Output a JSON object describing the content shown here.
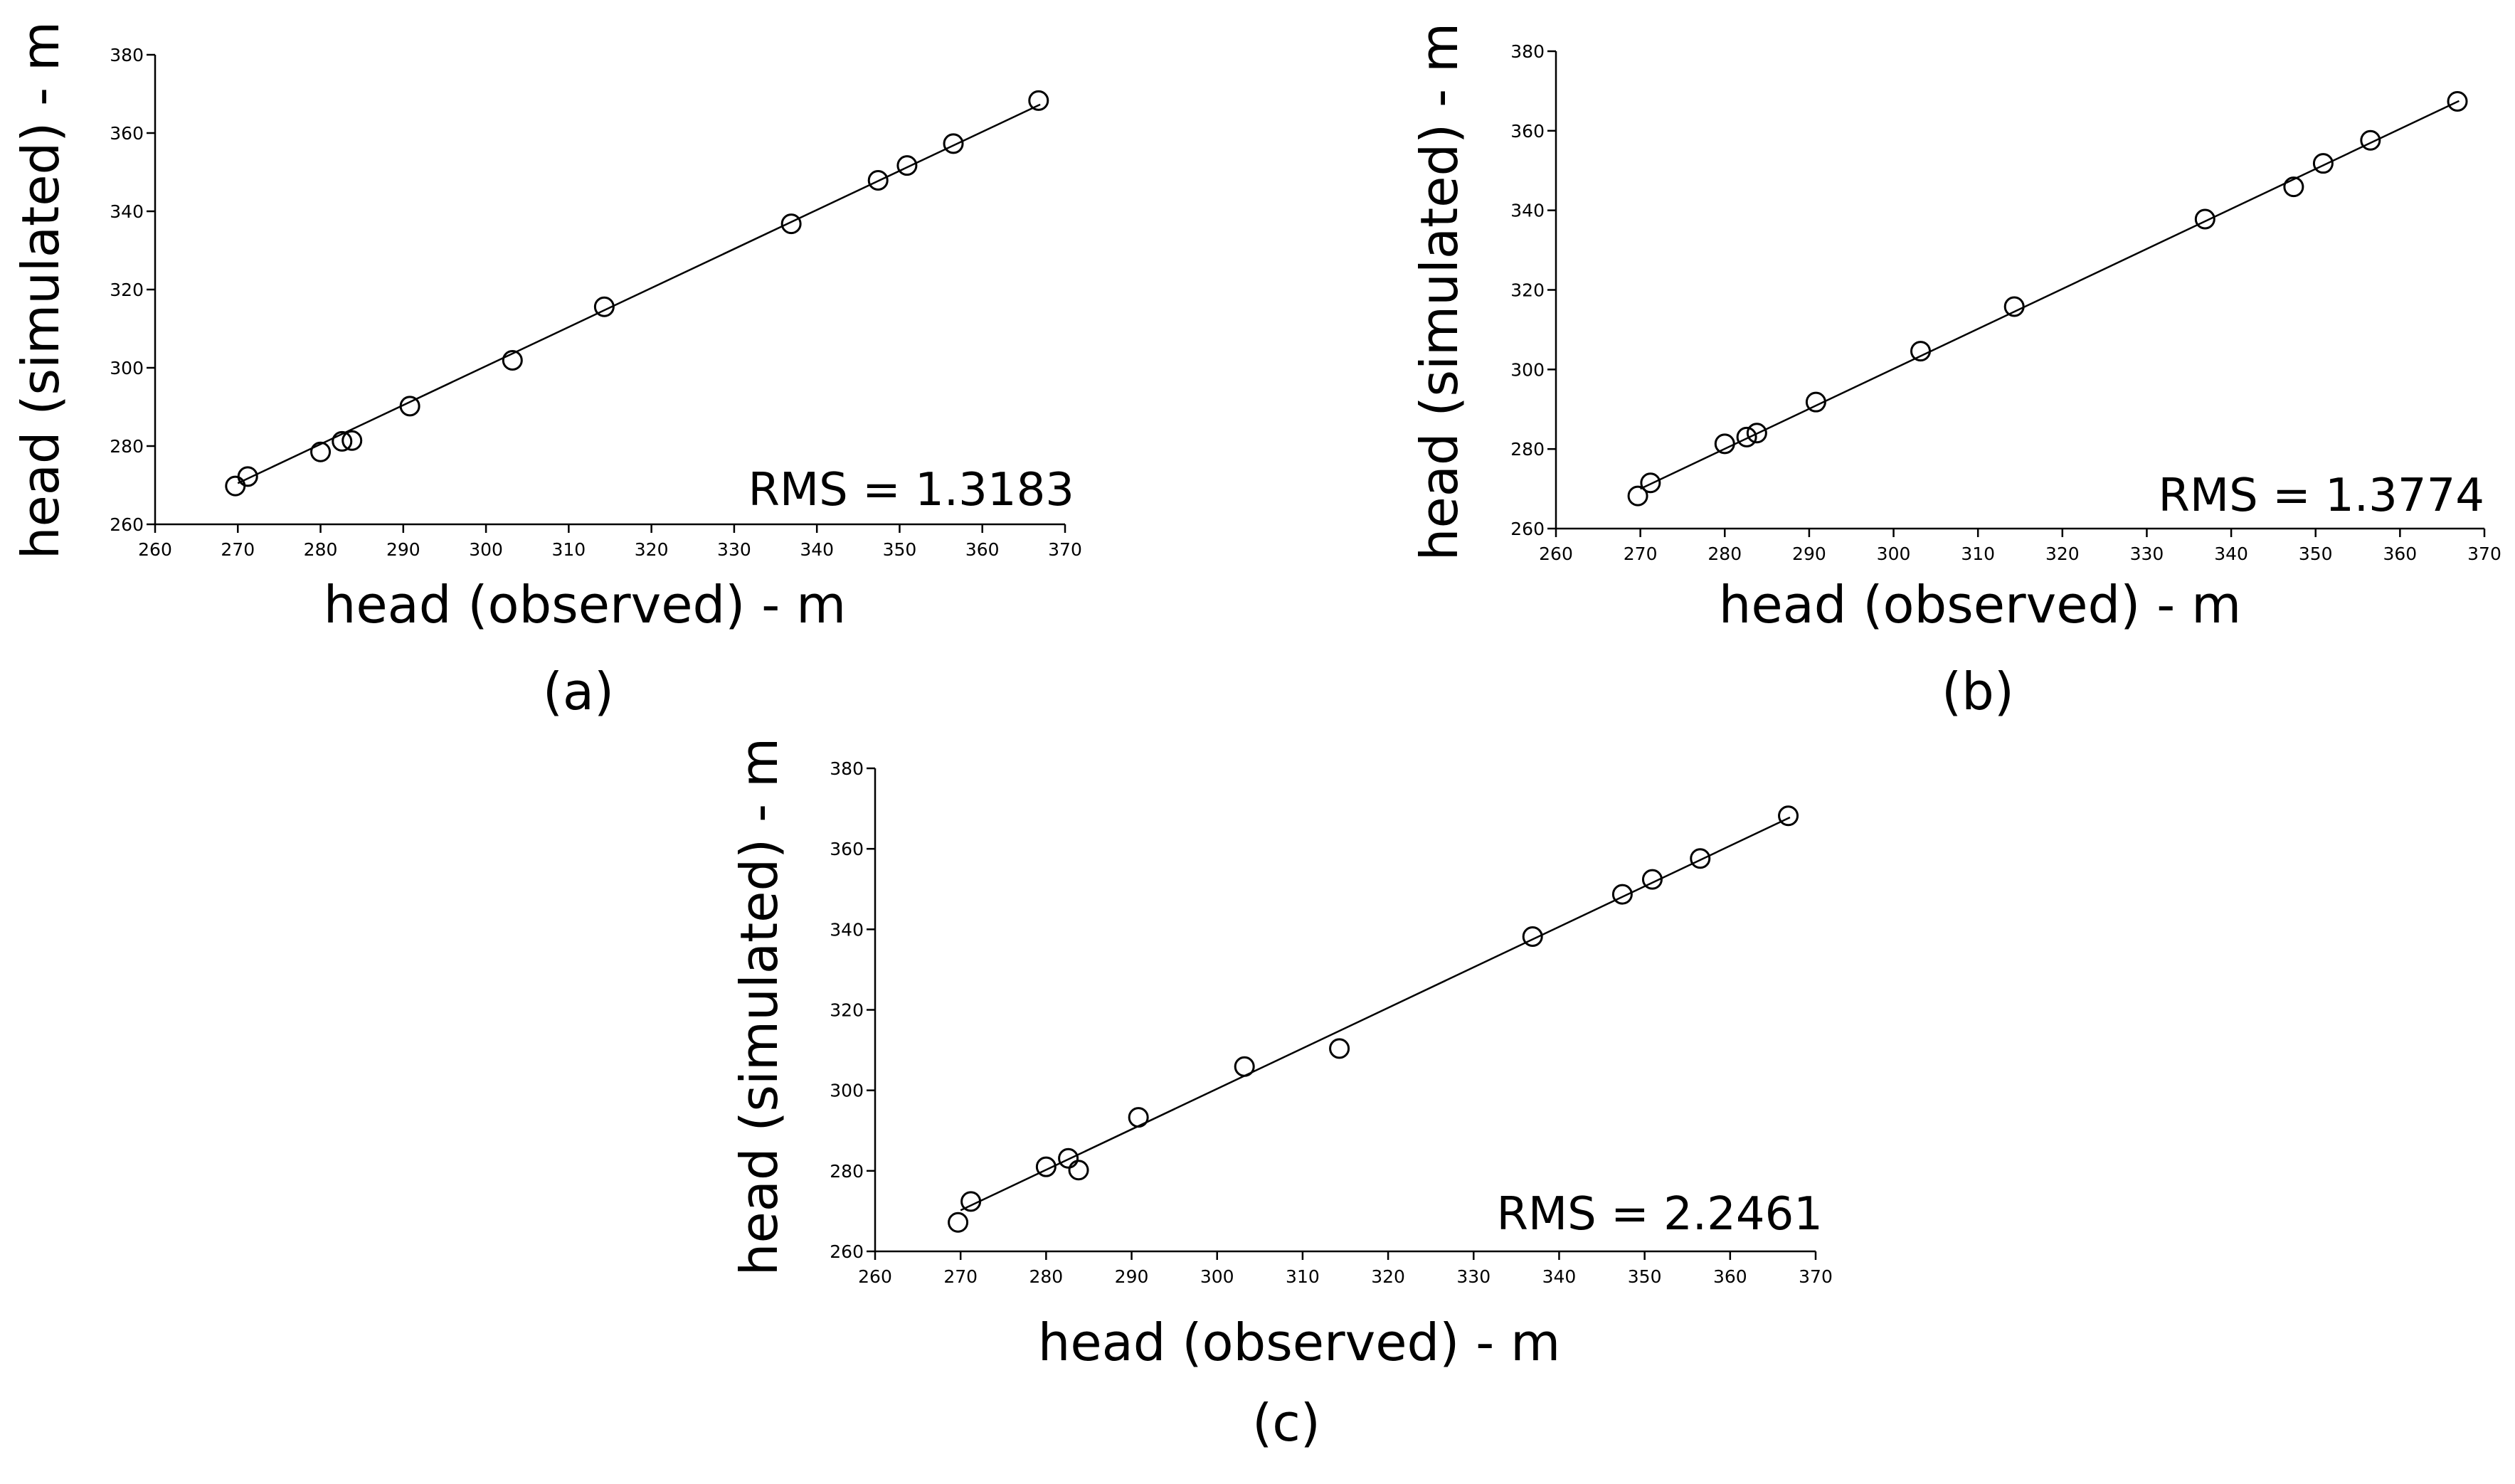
{
  "chart_data": [
    {
      "type": "scatter",
      "panel_label": "(a)",
      "xlabel": "head (observed) - m",
      "ylabel": "head (simulated) - m",
      "annotation": "RMS = 1.3183",
      "xlim": [
        260,
        370
      ],
      "ylim": [
        260,
        380
      ],
      "x_ticks": [
        "260",
        "270",
        "280",
        "290",
        "300",
        "310",
        "320",
        "330",
        "340",
        "350",
        "360",
        "370"
      ],
      "y_ticks": [
        "260",
        "280",
        "300",
        "320",
        "340",
        "360",
        "380"
      ],
      "points": {
        "x": [
          269.7,
          271.2,
          280.0,
          282.6,
          283.8,
          290.8,
          303.2,
          314.3,
          336.9,
          347.4,
          350.9,
          356.5,
          366.8
        ],
        "y": [
          269.8,
          272.2,
          278.5,
          281.2,
          281.4,
          290.2,
          301.9,
          315.6,
          336.8,
          347.9,
          351.7,
          357.3,
          368.3
        ]
      },
      "fit_line": {
        "x": [
          270,
          367
        ],
        "y": [
          270.5,
          367.3
        ]
      }
    },
    {
      "type": "scatter",
      "panel_label": "(b)",
      "xlabel": "head (observed) - m",
      "ylabel": "head (simulated) - m",
      "annotation": "RMS = 1.3774",
      "xlim": [
        260,
        370
      ],
      "ylim": [
        260,
        380
      ],
      "x_ticks": [
        "260",
        "270",
        "280",
        "290",
        "300",
        "310",
        "320",
        "330",
        "340",
        "350",
        "360",
        "370"
      ],
      "y_ticks": [
        "260",
        "280",
        "300",
        "320",
        "340",
        "360",
        "380"
      ],
      "points": {
        "x": [
          269.7,
          271.2,
          280.0,
          282.6,
          283.8,
          290.8,
          303.2,
          314.3,
          336.9,
          347.4,
          350.9,
          356.5,
          366.8
        ],
        "y": [
          268.2,
          271.5,
          281.3,
          283.0,
          284.0,
          291.8,
          304.6,
          315.8,
          337.8,
          345.9,
          351.8,
          357.6,
          367.4
        ]
      },
      "fit_line": {
        "x": [
          270,
          367
        ],
        "y": [
          270.0,
          367.5
        ]
      }
    },
    {
      "type": "scatter",
      "panel_label": "(c)",
      "xlabel": "head (observed) - m",
      "ylabel": "head (simulated) - m",
      "annotation": "RMS = 2.2461",
      "xlim": [
        260,
        370
      ],
      "ylim": [
        260,
        380
      ],
      "x_ticks": [
        "260",
        "270",
        "280",
        "290",
        "300",
        "310",
        "320",
        "330",
        "340",
        "350",
        "360",
        "370"
      ],
      "y_ticks": [
        "260",
        "280",
        "300",
        "320",
        "340",
        "360",
        "380"
      ],
      "points": {
        "x": [
          269.7,
          271.2,
          280.0,
          282.6,
          283.8,
          290.8,
          303.2,
          314.3,
          336.9,
          347.4,
          350.9,
          356.5,
          366.8
        ],
        "y": [
          267.2,
          272.4,
          281.0,
          283.1,
          280.2,
          293.3,
          305.9,
          310.4,
          338.2,
          348.7,
          352.4,
          357.6,
          368.2
        ]
      },
      "fit_line": {
        "x": [
          270,
          367
        ],
        "y": [
          270.2,
          367.8
        ]
      }
    }
  ]
}
